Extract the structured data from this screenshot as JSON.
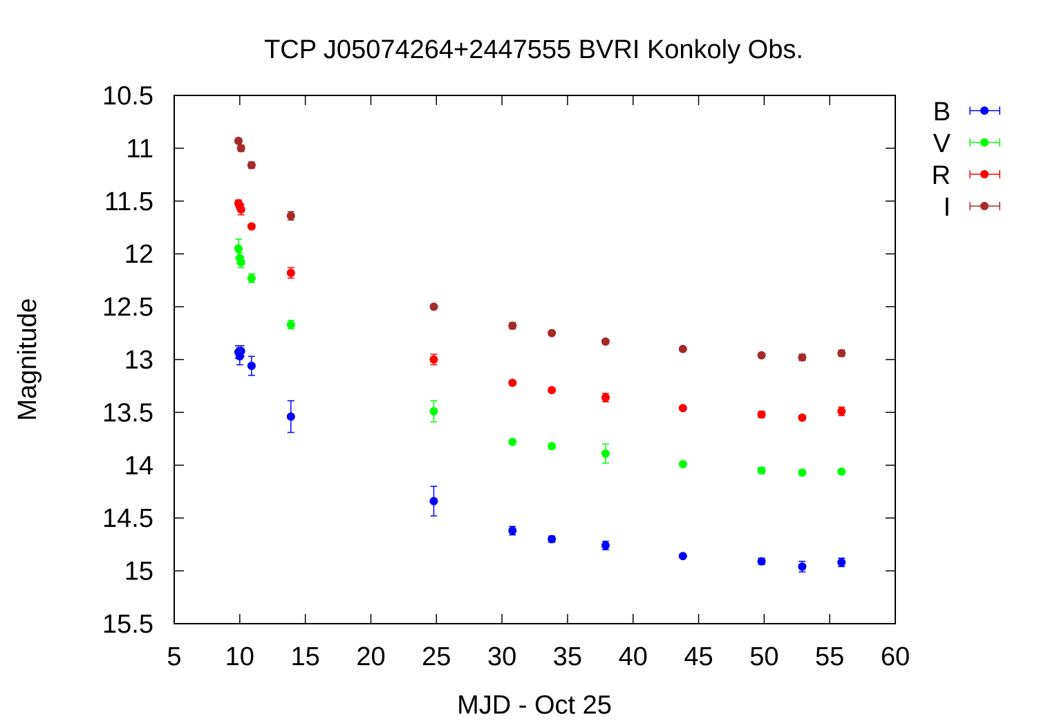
{
  "chart_data": {
    "type": "scatter",
    "title": "TCP J05074264+2447555 BVRI Konkoly Obs.",
    "xlabel": "MJD - Oct 25",
    "ylabel": "Magnitude",
    "xlim": [
      5,
      60
    ],
    "ylim": [
      10.5,
      15.5
    ],
    "y_inverted": true,
    "xticks": [
      5,
      10,
      15,
      20,
      25,
      30,
      35,
      40,
      45,
      50,
      55,
      60
    ],
    "yticks": [
      10.5,
      11,
      11.5,
      12,
      12.5,
      13,
      13.5,
      14,
      14.5,
      15,
      15.5
    ],
    "ytick_labels": [
      "10.5",
      "11",
      "11.5",
      "12",
      "12.5",
      "13",
      "13.5",
      "14",
      "14.5",
      "15",
      "15.5"
    ],
    "grid": false,
    "legend_position": "top-right, outside plot",
    "series": [
      {
        "name": "B",
        "color": "#0000ff",
        "points": [
          {
            "x": 9.9,
            "y": 12.93,
            "err": 0.06
          },
          {
            "x": 10.0,
            "y": 12.97,
            "err": 0.08
          },
          {
            "x": 10.1,
            "y": 12.92,
            "err": 0.05
          },
          {
            "x": 10.9,
            "y": 13.06,
            "err": 0.09
          },
          {
            "x": 13.9,
            "y": 13.54,
            "err": 0.15
          },
          {
            "x": 24.8,
            "y": 14.34,
            "err": 0.14
          },
          {
            "x": 30.8,
            "y": 14.62,
            "err": 0.04
          },
          {
            "x": 33.8,
            "y": 14.7,
            "err": 0.03
          },
          {
            "x": 37.9,
            "y": 14.76,
            "err": 0.04
          },
          {
            "x": 43.8,
            "y": 14.86,
            "err": 0.02
          },
          {
            "x": 49.8,
            "y": 14.91,
            "err": 0.03
          },
          {
            "x": 52.9,
            "y": 14.96,
            "err": 0.05
          },
          {
            "x": 55.9,
            "y": 14.92,
            "err": 0.04
          }
        ]
      },
      {
        "name": "V",
        "color": "#00ff00",
        "points": [
          {
            "x": 9.9,
            "y": 11.95,
            "err": 0.09
          },
          {
            "x": 10.0,
            "y": 12.04,
            "err": 0.05
          },
          {
            "x": 10.1,
            "y": 12.08,
            "err": 0.05
          },
          {
            "x": 10.9,
            "y": 12.23,
            "err": 0.04
          },
          {
            "x": 13.9,
            "y": 12.67,
            "err": 0.04
          },
          {
            "x": 24.8,
            "y": 13.49,
            "err": 0.1
          },
          {
            "x": 30.8,
            "y": 13.78,
            "err": 0.02
          },
          {
            "x": 33.8,
            "y": 13.82,
            "err": 0.02
          },
          {
            "x": 37.9,
            "y": 13.89,
            "err": 0.09
          },
          {
            "x": 43.8,
            "y": 13.99,
            "err": 0.02
          },
          {
            "x": 49.8,
            "y": 14.05,
            "err": 0.03
          },
          {
            "x": 52.9,
            "y": 14.07,
            "err": 0.02
          },
          {
            "x": 55.9,
            "y": 14.06,
            "err": 0.02
          }
        ]
      },
      {
        "name": "R",
        "color": "#ff0000",
        "points": [
          {
            "x": 9.9,
            "y": 11.52,
            "err": 0.03
          },
          {
            "x": 10.0,
            "y": 11.55,
            "err": 0.03
          },
          {
            "x": 10.1,
            "y": 11.58,
            "err": 0.05
          },
          {
            "x": 10.9,
            "y": 11.74,
            "err": 0.02
          },
          {
            "x": 13.9,
            "y": 12.18,
            "err": 0.05
          },
          {
            "x": 24.8,
            "y": 13.0,
            "err": 0.05
          },
          {
            "x": 30.8,
            "y": 13.22,
            "err": 0.02
          },
          {
            "x": 33.8,
            "y": 13.29,
            "err": 0.02
          },
          {
            "x": 37.9,
            "y": 13.36,
            "err": 0.04
          },
          {
            "x": 43.8,
            "y": 13.46,
            "err": 0.02
          },
          {
            "x": 49.8,
            "y": 13.52,
            "err": 0.03
          },
          {
            "x": 52.9,
            "y": 13.55,
            "err": 0.02
          },
          {
            "x": 55.9,
            "y": 13.49,
            "err": 0.04
          }
        ]
      },
      {
        "name": "I",
        "color": "#a52a2a",
        "points": [
          {
            "x": 9.9,
            "y": 10.93,
            "err": 0.02
          },
          {
            "x": 10.1,
            "y": 11.0,
            "err": 0.03
          },
          {
            "x": 10.9,
            "y": 11.16,
            "err": 0.03
          },
          {
            "x": 13.9,
            "y": 11.64,
            "err": 0.04
          },
          {
            "x": 24.8,
            "y": 12.5,
            "err": 0.02
          },
          {
            "x": 30.8,
            "y": 12.68,
            "err": 0.03
          },
          {
            "x": 33.8,
            "y": 12.75,
            "err": 0.02
          },
          {
            "x": 37.9,
            "y": 12.83,
            "err": 0.02
          },
          {
            "x": 43.8,
            "y": 12.9,
            "err": 0.02
          },
          {
            "x": 49.8,
            "y": 12.96,
            "err": 0.02
          },
          {
            "x": 52.9,
            "y": 12.98,
            "err": 0.03
          },
          {
            "x": 55.9,
            "y": 12.94,
            "err": 0.03
          }
        ]
      }
    ]
  }
}
